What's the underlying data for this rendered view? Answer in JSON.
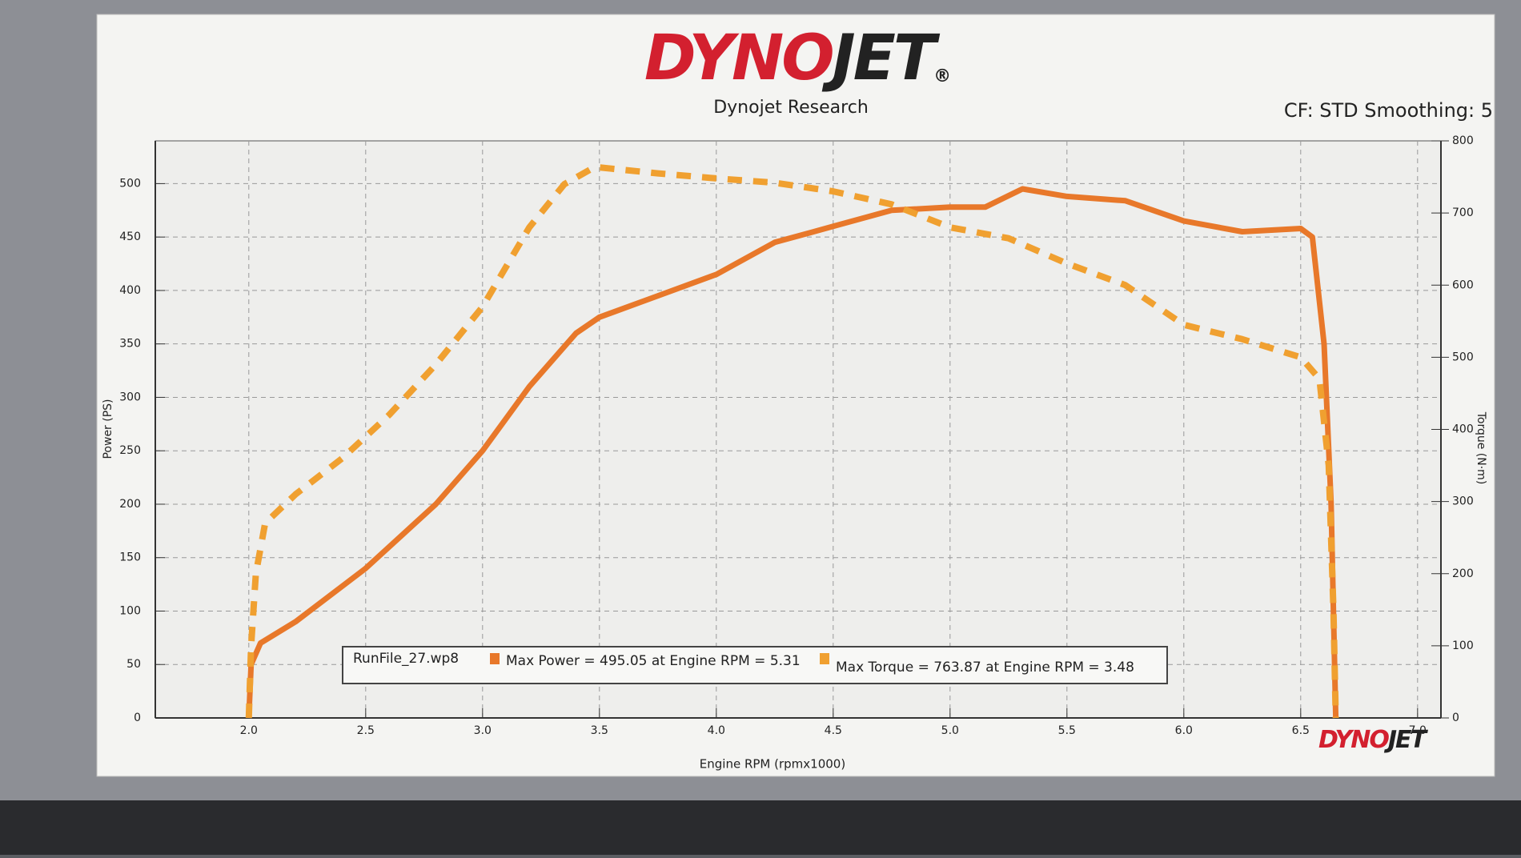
{
  "chart_data": {
    "type": "line",
    "brand": [
      "DYNO",
      "JET"
    ],
    "brand_mark": "®",
    "title": "Dynojet Research",
    "subtitle": "CF: STD Smoothing: 5",
    "xlabel": "Engine RPM (rpmx1000)",
    "ylabel": "Power (PS)",
    "y2label": "Torque (N·m)",
    "legend_title": "RunFile_27.wp8",
    "xlim": [
      1.6,
      7.1
    ],
    "xticks": [
      {
        "value": 2,
        "label": "2.0"
      },
      2.5,
      {
        "value": 3,
        "label": "3.0"
      },
      3.5,
      {
        "value": 4,
        "label": "4.0"
      },
      4.5,
      {
        "value": 5,
        "label": "5.0"
      },
      5.5,
      {
        "value": 6,
        "label": "6.0"
      },
      6.5,
      {
        "value": 7,
        "label": "7.0"
      }
    ],
    "ylim": [
      0,
      540
    ],
    "yticks": [
      0,
      50,
      100,
      150,
      200,
      250,
      300,
      350,
      400,
      450,
      500
    ],
    "y2lim": [
      0,
      800
    ],
    "y2ticks": [
      0,
      100,
      200,
      300,
      400,
      500,
      600,
      700,
      800
    ],
    "grid": true,
    "series": [
      {
        "name": "Max Power = 495.05 at Engine RPM = 5.31",
        "color": "#e8782a",
        "dash": false,
        "x": [
          2.0,
          2.01,
          2.05,
          2.2,
          2.5,
          2.8,
          3.0,
          3.2,
          3.4,
          3.5,
          3.75,
          4.0,
          4.25,
          4.5,
          4.75,
          5.0,
          5.15,
          5.31,
          5.5,
          5.75,
          6.0,
          6.25,
          6.5,
          6.55,
          6.6,
          6.63,
          6.65
        ],
        "values": [
          0,
          50,
          70,
          90,
          140,
          200,
          250,
          310,
          360,
          375,
          395,
          415,
          445,
          460,
          475,
          478,
          478,
          495.05,
          488,
          484,
          465,
          455,
          458,
          450,
          350,
          200,
          0
        ]
      },
      {
        "name": "Max Torque = 763.87 at Engine RPM = 3.48",
        "color": "#f0a030",
        "dash": true,
        "axis": "y2",
        "x": [
          2.0,
          2.01,
          2.03,
          2.07,
          2.2,
          2.4,
          2.6,
          2.8,
          3.0,
          3.2,
          3.35,
          3.48,
          3.75,
          4.0,
          4.25,
          4.5,
          4.75,
          5.0,
          5.25,
          5.5,
          5.75,
          6.0,
          6.25,
          6.5,
          6.58,
          6.62,
          6.64,
          6.65
        ],
        "values": [
          0,
          100,
          200,
          270,
          310,
          360,
          420,
          490,
          570,
          680,
          740,
          763.87,
          755,
          748,
          742,
          730,
          712,
          680,
          665,
          630,
          600,
          545,
          525,
          500,
          470,
          350,
          150,
          0
        ]
      }
    ]
  }
}
